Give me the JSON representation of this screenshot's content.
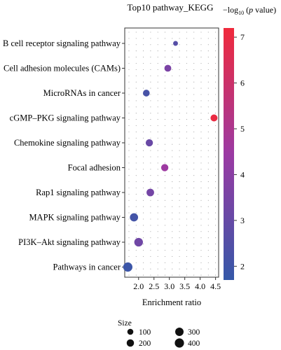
{
  "chart_data": {
    "type": "scatter",
    "title": "Top10 pathway_KEGG",
    "xlabel": "Enrichment ratio",
    "xlim": [
      1.55,
      4.6
    ],
    "x_ticks": [
      "2.0",
      "2.5",
      "3.0",
      "3.5",
      "4.0",
      "4.5"
    ],
    "x_tick_values": [
      2.0,
      2.5,
      3.0,
      3.5,
      4.0,
      4.5
    ],
    "categories": [
      "B cell receptor signaling pathway",
      "Cell adhesion molecules (CAMs)",
      "MicroRNAs in cancer",
      "cGMP–PKG signaling pathway",
      "Chemokine signaling pathway",
      "Focal adhesion",
      "Rap1 signaling pathway",
      "MAPK signaling pathway",
      "PI3K–Akt signaling pathway",
      "Pathways in cancer"
    ],
    "points": [
      {
        "pathway": "B cell receptor signaling pathway",
        "enrichment_ratio": 3.2,
        "size": 40,
        "neg_log10_p": 2.6
      },
      {
        "pathway": "Cell adhesion molecules (CAMs)",
        "enrichment_ratio": 2.95,
        "size": 160,
        "neg_log10_p": 3.6
      },
      {
        "pathway": "MicroRNAs in cancer",
        "enrichment_ratio": 2.25,
        "size": 150,
        "neg_log10_p": 2.2
      },
      {
        "pathway": "cGMP–PKG signaling pathway",
        "enrichment_ratio": 4.45,
        "size": 170,
        "neg_log10_p": 7.0
      },
      {
        "pathway": "Chemokine signaling pathway",
        "enrichment_ratio": 2.35,
        "size": 190,
        "neg_log10_p": 3.1
      },
      {
        "pathway": "Focal adhesion",
        "enrichment_ratio": 2.85,
        "size": 190,
        "neg_log10_p": 4.5
      },
      {
        "pathway": "Rap1 signaling pathway",
        "enrichment_ratio": 2.38,
        "size": 220,
        "neg_log10_p": 3.4
      },
      {
        "pathway": "MAPK signaling pathway",
        "enrichment_ratio": 1.85,
        "size": 280,
        "neg_log10_p": 2.1
      },
      {
        "pathway": "PI3K–Akt signaling pathway",
        "enrichment_ratio": 2.0,
        "size": 330,
        "neg_log10_p": 3.3
      },
      {
        "pathway": "Pathways in cancer",
        "enrichment_ratio": 1.65,
        "size": 400,
        "neg_log10_p": 1.9
      }
    ],
    "color_scale": {
      "label_prefix": "−log",
      "label_sub": "10",
      "label_open": " (",
      "label_p": "p",
      "label_suffix": " value)",
      "min": 1.7,
      "max": 7.2,
      "ticks": [
        "2",
        "3",
        "4",
        "5",
        "6",
        "7"
      ],
      "tick_values": [
        2,
        3,
        4,
        5,
        6,
        7
      ],
      "low_color": "#3558a8",
      "mid_color": "#9b3aa3",
      "high_color": "#f02a3c"
    },
    "size_legend": {
      "title": "Size",
      "entries": [
        {
          "label": "100",
          "value": 100
        },
        {
          "label": "200",
          "value": 200
        },
        {
          "label": "300",
          "value": 300
        },
        {
          "label": "400",
          "value": 400
        }
      ]
    },
    "grid": "dotted"
  }
}
